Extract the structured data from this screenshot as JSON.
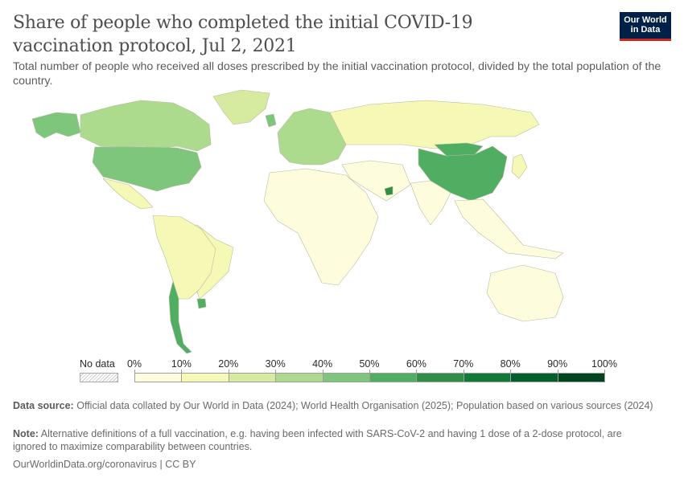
{
  "header": {
    "title": "Share of people who completed the initial COVID-19 vaccination protocol, Jul 2, 2021",
    "subtitle": "Total number of people who received all doses prescribed by the initial vaccination protocol, divided by the total population of the country.",
    "logo_line1": "Our World",
    "logo_line2": "in Data"
  },
  "legend": {
    "no_data_label": "No data",
    "bins": [
      "0%",
      "10%",
      "20%",
      "30%",
      "40%",
      "50%",
      "60%",
      "70%",
      "80%",
      "90%",
      "100%"
    ],
    "colors": [
      "#fdfdde",
      "#f6f8b5",
      "#d7eba0",
      "#acdb8e",
      "#7ec67b",
      "#4fae61",
      "#2f8f47",
      "#117a36",
      "#03602c",
      "#024620"
    ],
    "no_data_color": "#e6e6e6"
  },
  "map_data": {
    "type": "choropleth",
    "regions": [
      {
        "name": "Canada",
        "bin": 3
      },
      {
        "name": "United States",
        "bin": 4
      },
      {
        "name": "Mexico",
        "bin": 1
      },
      {
        "name": "Greenland",
        "bin": 2
      },
      {
        "name": "Alaska",
        "bin": 4
      },
      {
        "name": "Brazil",
        "bin": 1
      },
      {
        "name": "South America (rest)",
        "bin": 1
      },
      {
        "name": "Chile",
        "bin": 5
      },
      {
        "name": "Uruguay",
        "bin": 5
      },
      {
        "name": "Europe",
        "bin": 3
      },
      {
        "name": "United Kingdom",
        "bin": 4
      },
      {
        "name": "Russia",
        "bin": 1
      },
      {
        "name": "China",
        "bin": 5
      },
      {
        "name": "Mongolia",
        "bin": 5
      },
      {
        "name": "Africa",
        "bin": 0
      },
      {
        "name": "Middle East",
        "bin": 0
      },
      {
        "name": "United Arab Emirates",
        "bin": 6
      },
      {
        "name": "India",
        "bin": 0
      },
      {
        "name": "Southeast Asia",
        "bin": 0
      },
      {
        "name": "Japan",
        "bin": 1
      },
      {
        "name": "Australia",
        "bin": 0
      }
    ]
  },
  "footer": {
    "source_label": "Data source:",
    "source_text": "Official data collated by Our World in Data (2024); World Health Organisation (2025); Population based on various sources (2024)",
    "note_label": "Note:",
    "note_text": "Alternative definitions of a full vaccination, e.g. having been infected with SARS-CoV-2 and having 1 dose of a 2-dose protocol, are ignored to maximize comparability between countries.",
    "url": "OurWorldinData.org/coronavirus | CC BY"
  }
}
